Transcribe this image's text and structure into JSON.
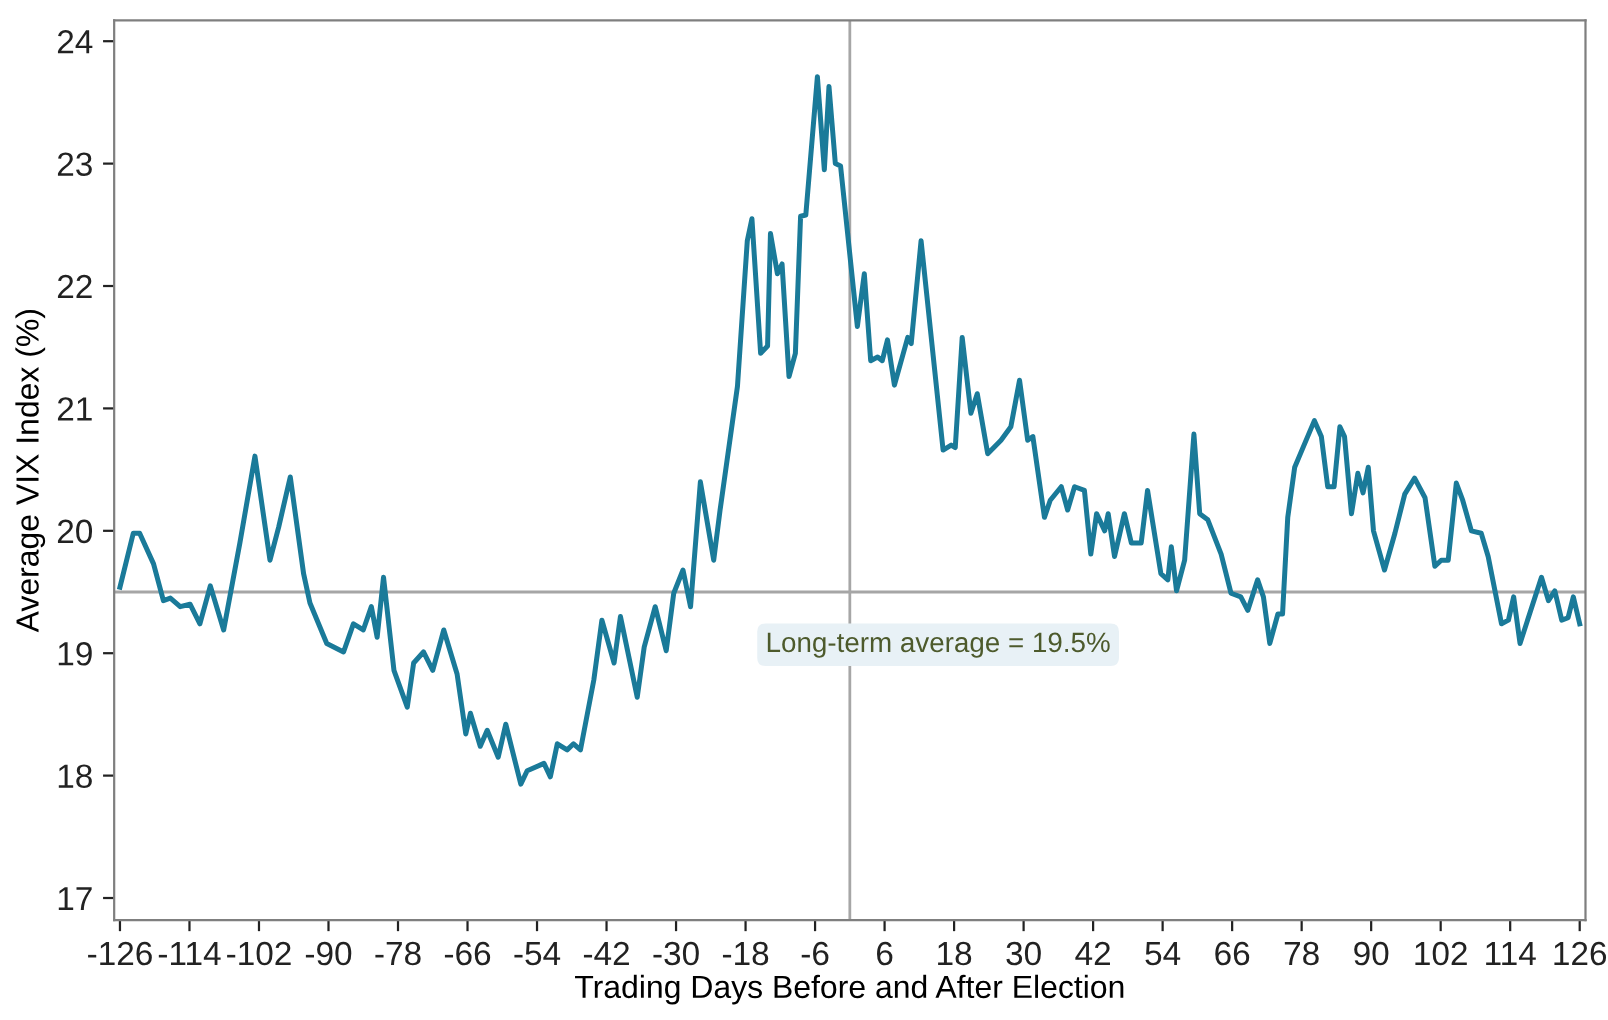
{
  "chart_data": {
    "type": "line",
    "xlabel": "Trading Days Before and After Election",
    "ylabel": "Average VIX Index (%)",
    "xlim": [
      -127,
      127
    ],
    "ylim": [
      16.82,
      24.17
    ],
    "xticks": [
      -126,
      -114,
      -102,
      -90,
      -78,
      -66,
      -54,
      -42,
      -30,
      -18,
      -6,
      6,
      18,
      30,
      42,
      54,
      66,
      78,
      90,
      102,
      114,
      126
    ],
    "yticks": [
      17,
      18,
      19,
      20,
      21,
      22,
      23,
      24
    ],
    "grid": false,
    "marker": "none",
    "line_style": "solid",
    "ref_lines": [
      {
        "axis": "y",
        "value": 19.5,
        "label": "Long-term average = 19.5%",
        "color": "#a6a6a6"
      },
      {
        "axis": "x",
        "value": 0,
        "color": "#a6a6a6"
      }
    ],
    "series": [
      {
        "color": "#1a7a99",
        "x": [
          -126,
          -123.7,
          -122.6,
          -120.2,
          -118.5,
          -117.3,
          -115.6,
          -113.9,
          -112.2,
          -110.4,
          -108.1,
          -105.3,
          -102.7,
          -100.1,
          -98.6,
          -96.6,
          -94.3,
          -93.2,
          -90.3,
          -87.4,
          -85.7,
          -84.0,
          -82.6,
          -81.6,
          -80.5,
          -78.7,
          -76.4,
          -75.3,
          -73.6,
          -72.0,
          -70.1,
          -67.8,
          -66.3,
          -65.5,
          -63.8,
          -62.6,
          -60.7,
          -59.4,
          -56.8,
          -55.7,
          -52.8,
          -51.7,
          -50.5,
          -48.8,
          -47.7,
          -46.5,
          -44.2,
          -42.8,
          -40.7,
          -39.6,
          -36.7,
          -35.5,
          -33.6,
          -31.7,
          -30.4,
          -28.8,
          -27.5,
          -25.8,
          -23.5,
          -22.4,
          -19.4,
          -17.7,
          -16.9,
          -15.4,
          -14.2,
          -13.7,
          -12.5,
          -11.7,
          -10.5,
          -9.4,
          -8.5,
          -7.6,
          -5.6,
          -4.4,
          -3.6,
          -2.5,
          -1.6,
          1.3,
          2.5,
          3.6,
          4.8,
          5.6,
          6.5,
          7.7,
          10.0,
          10.6,
          12.3,
          16.1,
          17.5,
          18.2,
          19.4,
          20.9,
          22.0,
          23.8,
          26.1,
          27.8,
          29.3,
          30.7,
          31.6,
          33.6,
          34.6,
          36.5,
          37.6,
          38.8,
          40.5,
          41.6,
          42.6,
          44.0,
          44.6,
          45.7,
          47.4,
          48.6,
          50.3,
          51.4,
          53.7,
          54.9,
          55.5,
          56.4,
          57.8,
          59.4,
          60.4,
          61.8,
          64.1,
          65.8,
          67.5,
          68.7,
          70.4,
          71.4,
          72.5,
          73.9,
          74.7,
          75.6,
          76.8,
          80.2,
          81.4,
          82.5,
          83.6,
          84.6,
          85.4,
          86.6,
          87.7,
          88.6,
          89.5,
          90.4,
          92.3,
          94.1,
          95.8,
          97.5,
          99.3,
          101.0,
          102.1,
          103.3,
          104.7,
          105.8,
          107.3,
          109.0,
          110.2,
          112.5,
          113.7,
          114.6,
          115.7,
          119.4,
          120.6,
          121.7,
          122.9,
          124.0,
          124.9,
          126
        ],
        "values": [
          19.54,
          19.98,
          19.98,
          19.73,
          19.43,
          19.45,
          19.38,
          19.4,
          19.24,
          19.55,
          19.19,
          19.9,
          20.61,
          19.76,
          20.03,
          20.44,
          19.65,
          19.41,
          19.08,
          19.01,
          19.24,
          19.19,
          19.38,
          19.13,
          19.62,
          18.86,
          18.56,
          18.92,
          19.01,
          18.86,
          19.19,
          18.83,
          18.34,
          18.51,
          18.24,
          18.37,
          18.15,
          18.42,
          17.93,
          18.04,
          18.1,
          17.99,
          18.26,
          18.21,
          18.26,
          18.21,
          18.78,
          19.27,
          18.92,
          19.3,
          18.64,
          19.05,
          19.38,
          19.02,
          19.49,
          19.68,
          19.38,
          20.4,
          19.76,
          20.17,
          21.18,
          22.37,
          22.55,
          21.45,
          21.51,
          22.43,
          22.1,
          22.18,
          21.26,
          21.45,
          22.57,
          22.58,
          23.71,
          22.95,
          23.63,
          23.0,
          22.98,
          21.67,
          22.1,
          21.39,
          21.42,
          21.39,
          21.56,
          21.19,
          21.58,
          21.53,
          22.37,
          20.66,
          20.7,
          20.68,
          21.58,
          20.96,
          21.12,
          20.63,
          20.74,
          20.85,
          21.23,
          20.74,
          20.77,
          20.11,
          20.25,
          20.36,
          20.17,
          20.36,
          20.33,
          19.81,
          20.14,
          20.0,
          20.14,
          19.79,
          20.14,
          19.9,
          19.9,
          20.33,
          19.65,
          19.6,
          19.87,
          19.51,
          19.76,
          20.79,
          20.14,
          20.09,
          19.81,
          19.49,
          19.46,
          19.35,
          19.6,
          19.46,
          19.08,
          19.32,
          19.32,
          20.11,
          20.52,
          20.9,
          20.77,
          20.36,
          20.36,
          20.85,
          20.77,
          20.14,
          20.47,
          20.31,
          20.52,
          20.0,
          19.68,
          19.98,
          20.3,
          20.43,
          20.27,
          19.71,
          19.76,
          19.76,
          20.39,
          20.25,
          20.0,
          19.98,
          19.79,
          19.24,
          19.27,
          19.46,
          19.08,
          19.62,
          19.43,
          19.51,
          19.27,
          19.29,
          19.46,
          19.24
        ]
      }
    ]
  }
}
